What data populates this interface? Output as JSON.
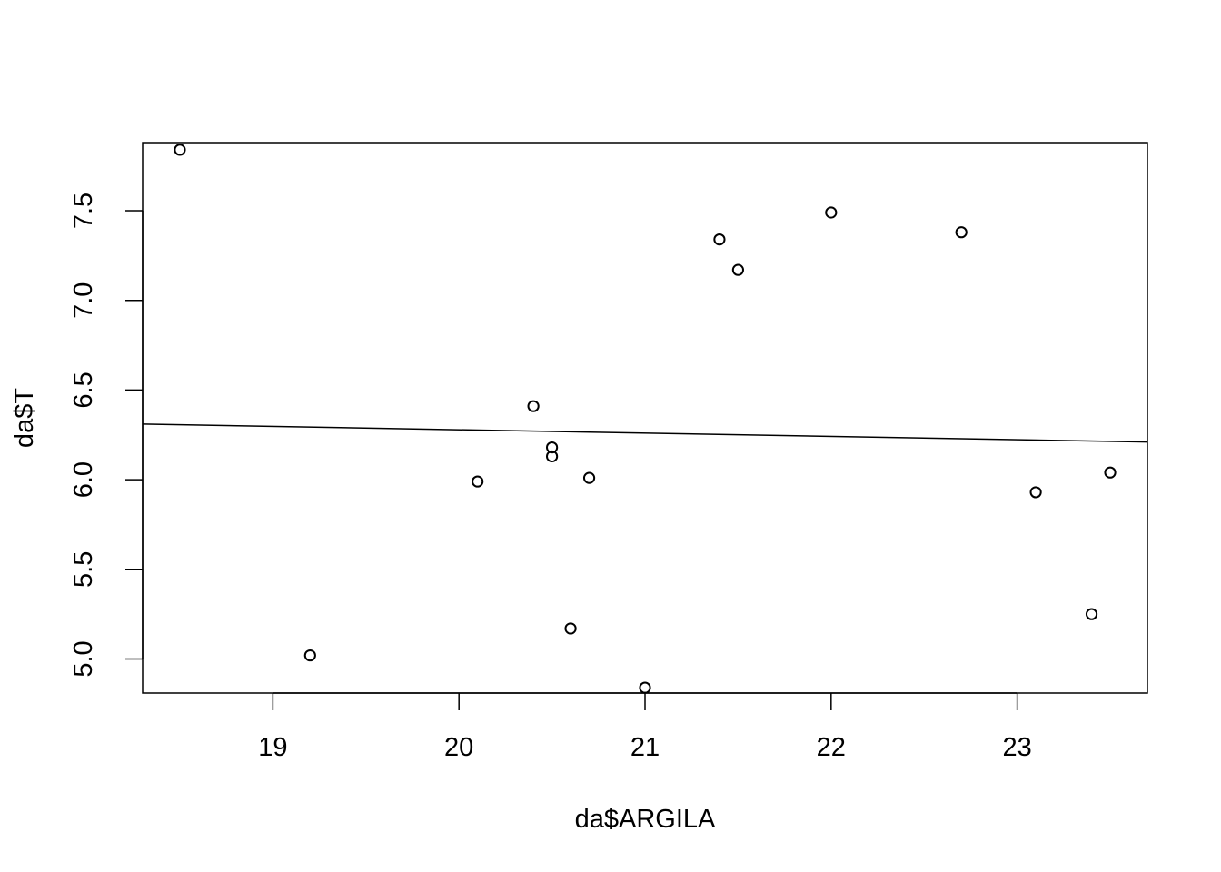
{
  "chart_data": {
    "type": "scatter",
    "xlabel": "da$ARGILA",
    "ylabel": "da$T",
    "xlim": [
      18.3,
      23.7
    ],
    "ylim": [
      4.81,
      7.88
    ],
    "x_ticks": [
      19,
      20,
      21,
      22,
      23
    ],
    "y_ticks": [
      5.0,
      5.5,
      6.0,
      6.5,
      7.0,
      7.5
    ],
    "x_tick_labels": [
      "19",
      "20",
      "21",
      "22",
      "23"
    ],
    "y_tick_labels": [
      "5.0",
      "5.5",
      "6.0",
      "6.5",
      "7.0",
      "7.5"
    ],
    "points": [
      {
        "x": 18.5,
        "y": 7.84
      },
      {
        "x": 19.2,
        "y": 5.02
      },
      {
        "x": 20.1,
        "y": 5.99
      },
      {
        "x": 20.4,
        "y": 6.41
      },
      {
        "x": 20.5,
        "y": 6.18
      },
      {
        "x": 20.5,
        "y": 6.13
      },
      {
        "x": 20.6,
        "y": 5.17
      },
      {
        "x": 20.7,
        "y": 6.01
      },
      {
        "x": 21.0,
        "y": 4.84
      },
      {
        "x": 21.4,
        "y": 7.34
      },
      {
        "x": 21.5,
        "y": 7.17
      },
      {
        "x": 22.0,
        "y": 7.49
      },
      {
        "x": 22.7,
        "y": 7.38
      },
      {
        "x": 23.1,
        "y": 5.93
      },
      {
        "x": 23.4,
        "y": 5.25
      },
      {
        "x": 23.5,
        "y": 6.04
      }
    ],
    "regression_line": {
      "x": [
        18.3,
        23.7
      ],
      "y": [
        6.31,
        6.21
      ]
    },
    "grid": false,
    "legend": "none"
  }
}
